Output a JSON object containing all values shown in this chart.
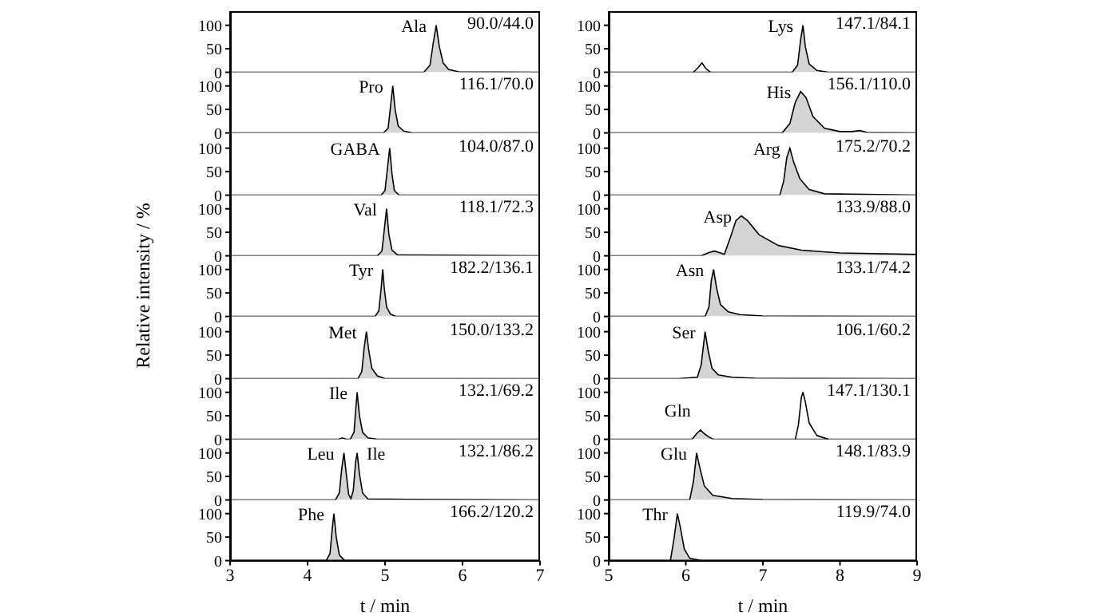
{
  "chart_data": [
    {
      "type": "area",
      "series": [
        {
          "color": "#d4d4d4",
          "x": [
            3,
            5.5,
            5.58,
            5.62,
            5.66,
            5.7,
            5.75,
            5.82,
            5.95,
            7
          ],
          "values": [
            0,
            0,
            15,
            60,
            100,
            55,
            20,
            6,
            1,
            0
          ]
        }
      ],
      "xlim": [
        3,
        7
      ],
      "ylim": [
        0,
        130
      ],
      "yticks": [
        0,
        50,
        100
      ],
      "tick_labels": "y",
      "annotations": [
        {
          "text": "Ala",
          "x": 5.66,
          "y": 100
        },
        "90.0/44.0"
      ]
    },
    {
      "type": "area",
      "series": [
        {
          "color": "#d4d4d4",
          "x": [
            3,
            4.98,
            5.04,
            5.07,
            5.1,
            5.13,
            5.17,
            5.24,
            5.35,
            7
          ],
          "values": [
            0,
            0,
            10,
            55,
            100,
            50,
            15,
            4,
            0,
            0
          ]
        }
      ],
      "xlim": [
        3,
        7
      ],
      "ylim": [
        0,
        130
      ],
      "yticks": [
        0,
        50,
        100
      ],
      "tick_labels": "y",
      "annotations": [
        {
          "text": "Pro",
          "x": 5.1,
          "y": 100
        },
        "116.1/70.0"
      ]
    },
    {
      "type": "area",
      "series": [
        {
          "color": "#d4d4d4",
          "x": [
            3,
            4.95,
            5,
            5.03,
            5.06,
            5.09,
            5.12,
            5.18,
            7
          ],
          "values": [
            0,
            0,
            10,
            55,
            100,
            45,
            10,
            0,
            0
          ]
        }
      ],
      "xlim": [
        3,
        7
      ],
      "ylim": [
        0,
        130
      ],
      "yticks": [
        0,
        50,
        100
      ],
      "tick_labels": "y",
      "annotations": [
        {
          "text": "GABA",
          "x": 5.06,
          "y": 100
        },
        "104.0/87.0"
      ]
    },
    {
      "type": "area",
      "series": [
        {
          "color": "#d4d4d4",
          "x": [
            3,
            4.9,
            4.96,
            4.99,
            5.02,
            5.05,
            5.09,
            5.16,
            7
          ],
          "values": [
            0,
            0,
            10,
            55,
            100,
            45,
            12,
            2,
            0
          ]
        }
      ],
      "xlim": [
        3,
        7
      ],
      "ylim": [
        0,
        130
      ],
      "yticks": [
        0,
        50,
        100
      ],
      "tick_labels": "y",
      "annotations": [
        {
          "text": "Val",
          "x": 5.02,
          "y": 100
        },
        "118.1/72.3"
      ]
    },
    {
      "type": "area",
      "series": [
        {
          "color": "#d4d4d4",
          "x": [
            3,
            4.87,
            4.92,
            4.95,
            4.97,
            4.99,
            5.02,
            5.07,
            5.14,
            7
          ],
          "values": [
            0,
            0,
            12,
            60,
            100,
            60,
            20,
            5,
            0,
            0
          ]
        }
      ],
      "xlim": [
        3,
        7
      ],
      "ylim": [
        0,
        130
      ],
      "yticks": [
        0,
        50,
        100
      ],
      "tick_labels": "y",
      "ylabel": "Relative intensity / %",
      "annotations": [
        {
          "text": "Tyr",
          "x": 4.97,
          "y": 100
        },
        "182.2/136.1"
      ]
    },
    {
      "type": "area",
      "series": [
        {
          "color": "#d4d4d4",
          "x": [
            3,
            4.65,
            4.7,
            4.73,
            4.76,
            4.79,
            4.83,
            4.9,
            5,
            7
          ],
          "values": [
            0,
            0,
            15,
            65,
            100,
            60,
            22,
            6,
            0,
            0
          ]
        }
      ],
      "xlim": [
        3,
        7
      ],
      "ylim": [
        0,
        130
      ],
      "yticks": [
        0,
        50,
        100
      ],
      "tick_labels": "y",
      "annotations": [
        {
          "text": "Met",
          "x": 4.76,
          "y": 100
        },
        "150.0/133.2"
      ]
    },
    {
      "type": "area",
      "series": [
        {
          "color": "#d4d4d4",
          "x": [
            3,
            4.4,
            4.45,
            4.5,
            4.55,
            4.6,
            4.62,
            4.64,
            4.67,
            4.71,
            4.78,
            4.9,
            7
          ],
          "values": [
            0,
            0,
            3,
            0,
            0,
            15,
            60,
            100,
            50,
            15,
            3,
            0,
            0
          ]
        }
      ],
      "xlim": [
        3,
        7
      ],
      "ylim": [
        0,
        130
      ],
      "yticks": [
        0,
        50,
        100
      ],
      "tick_labels": "y",
      "annotations": [
        {
          "text": "Ile",
          "x": 4.64,
          "y": 100
        },
        "132.1/69.2"
      ]
    },
    {
      "type": "area",
      "series": [
        {
          "color": "#d4d4d4",
          "x": [
            3,
            4.36,
            4.41,
            4.44,
            4.47,
            4.5,
            4.53,
            4.56,
            4.59,
            4.62,
            4.64,
            4.67,
            4.71,
            4.78,
            7
          ],
          "values": [
            0,
            0,
            15,
            65,
            100,
            55,
            12,
            3,
            20,
            80,
            100,
            55,
            15,
            2,
            0
          ]
        }
      ],
      "xlim": [
        3,
        7
      ],
      "ylim": [
        0,
        130
      ],
      "yticks": [
        0,
        50,
        100
      ],
      "tick_labels": "y",
      "annotations": [
        {
          "text": "Leu",
          "x": 4.47,
          "y": 100
        },
        {
          "text": "Ile",
          "x": 4.64,
          "y": 100
        },
        "132.1/86.2"
      ]
    },
    {
      "type": "area",
      "series": [
        {
          "color": "#d4d4d4",
          "x": [
            3,
            4.24,
            4.29,
            4.32,
            4.34,
            4.37,
            4.41,
            4.48,
            7
          ],
          "values": [
            0,
            0,
            15,
            70,
            100,
            50,
            12,
            0,
            0
          ]
        }
      ],
      "xlim": [
        3,
        7
      ],
      "ylim": [
        0,
        130
      ],
      "yticks": [
        0,
        50,
        100
      ],
      "xticks": [
        3,
        4,
        5,
        6,
        7
      ],
      "xlabel": "t / min",
      "annotations": [
        {
          "text": "Phe",
          "x": 4.34,
          "y": 100
        },
        "166.2/120.2"
      ]
    },
    {
      "type": "area",
      "series": [
        {
          "color": "#d4d4d4",
          "x": [
            5,
            7.38,
            7.45,
            7.49,
            7.52,
            7.55,
            7.6,
            7.7,
            7.85,
            9
          ],
          "values": [
            0,
            0,
            15,
            70,
            100,
            55,
            18,
            4,
            0,
            0
          ]
        },
        {
          "type": "line",
          "color": "#000000",
          "x": [
            6.1,
            6.16,
            6.21,
            6.26,
            6.32
          ],
          "values": [
            0,
            10,
            20,
            8,
            0
          ]
        }
      ],
      "xlim": [
        5,
        9
      ],
      "ylim": [
        0,
        130
      ],
      "yticks": [
        0,
        50,
        100
      ],
      "tick_labels": "y",
      "annotations": [
        {
          "text": "Lys",
          "x": 7.52,
          "y": 100
        },
        "147.1/84.1"
      ]
    },
    {
      "type": "area",
      "series": [
        {
          "color": "#d4d4d4",
          "x": [
            5,
            7.25,
            7.35,
            7.42,
            7.49,
            7.56,
            7.65,
            7.8,
            8,
            8.15,
            8.26,
            8.35,
            9
          ],
          "values": [
            0,
            0,
            20,
            65,
            88,
            75,
            35,
            10,
            3,
            3,
            5,
            1,
            0
          ]
        }
      ],
      "xlim": [
        5,
        9
      ],
      "ylim": [
        0,
        130
      ],
      "yticks": [
        0,
        50,
        100
      ],
      "tick_labels": "y",
      "annotations": [
        {
          "text": "His",
          "x": 7.49,
          "y": 88
        },
        "156.1/110.0"
      ]
    },
    {
      "type": "area",
      "series": [
        {
          "color": "#d4d4d4",
          "x": [
            5,
            7.22,
            7.27,
            7.31,
            7.35,
            7.4,
            7.48,
            7.6,
            7.8,
            9
          ],
          "values": [
            0,
            0,
            30,
            80,
            100,
            70,
            35,
            12,
            3,
            0
          ]
        }
      ],
      "xlim": [
        5,
        9
      ],
      "ylim": [
        0,
        130
      ],
      "yticks": [
        0,
        50,
        100
      ],
      "tick_labels": "y",
      "annotations": [
        {
          "text": "Arg",
          "x": 7.35,
          "y": 100
        },
        "175.2/70.2"
      ]
    },
    {
      "type": "area",
      "series": [
        {
          "color": "#d4d4d4",
          "x": [
            5,
            6.2,
            6.3,
            6.37,
            6.45,
            6.5,
            6.58,
            6.65,
            6.72,
            6.8,
            6.95,
            7.2,
            7.5,
            8,
            9
          ],
          "values": [
            0,
            0,
            7,
            10,
            6,
            3,
            40,
            75,
            85,
            75,
            45,
            22,
            12,
            6,
            3
          ]
        }
      ],
      "xlim": [
        5,
        9
      ],
      "ylim": [
        0,
        130
      ],
      "yticks": [
        0,
        50,
        100
      ],
      "tick_labels": "y",
      "annotations": [
        {
          "text": "Asp",
          "x": 6.72,
          "y": 85
        },
        "133.9/88.0"
      ]
    },
    {
      "type": "area",
      "series": [
        {
          "color": "#d4d4d4",
          "x": [
            5,
            6.25,
            6.3,
            6.33,
            6.36,
            6.4,
            6.45,
            6.55,
            6.7,
            7,
            9
          ],
          "values": [
            0,
            0,
            20,
            75,
            100,
            60,
            25,
            10,
            4,
            1,
            0
          ]
        }
      ],
      "xlim": [
        5,
        9
      ],
      "ylim": [
        0,
        130
      ],
      "yticks": [
        0,
        50,
        100
      ],
      "tick_labels": "y",
      "annotations": [
        {
          "text": "Asn",
          "x": 6.36,
          "y": 100
        },
        "133.1/74.2"
      ]
    },
    {
      "type": "area",
      "series": [
        {
          "color": "#d4d4d4",
          "x": [
            5,
            5.9,
            6.15,
            6.2,
            6.25,
            6.29,
            6.34,
            6.42,
            6.6,
            6.9,
            9
          ],
          "values": [
            0,
            0,
            3,
            30,
            100,
            60,
            22,
            8,
            3,
            1,
            0
          ]
        }
      ],
      "xlim": [
        5,
        9
      ],
      "ylim": [
        0,
        130
      ],
      "yticks": [
        0,
        50,
        100
      ],
      "tick_labels": "y",
      "annotations": [
        {
          "text": "Ser",
          "x": 6.25,
          "y": 100
        },
        "106.1/60.2"
      ]
    },
    {
      "type": "area",
      "series": [
        {
          "color": "#d4d4d4",
          "x": [
            5,
            6.08,
            6.14,
            6.19,
            6.24,
            6.3,
            6.36,
            9
          ],
          "values": [
            0,
            0,
            12,
            20,
            12,
            5,
            0,
            0
          ]
        },
        {
          "type": "line",
          "color": "#000000",
          "x": [
            7.42,
            7.46,
            7.5,
            7.52,
            7.55,
            7.6,
            7.7,
            7.85
          ],
          "values": [
            0,
            30,
            90,
            100,
            80,
            35,
            8,
            0
          ]
        }
      ],
      "xlim": [
        5,
        9
      ],
      "ylim": [
        0,
        130
      ],
      "yticks": [
        0,
        50,
        100
      ],
      "tick_labels": "y",
      "annotations": [
        {
          "text": "Gln",
          "x": 6.19,
          "y": 20
        },
        "147.1/130.1"
      ]
    },
    {
      "type": "area",
      "series": [
        {
          "color": "#d4d4d4",
          "x": [
            5,
            6.05,
            6.1,
            6.14,
            6.18,
            6.24,
            6.35,
            6.6,
            7,
            9
          ],
          "values": [
            0,
            0,
            40,
            100,
            70,
            30,
            10,
            3,
            1,
            0
          ]
        }
      ],
      "xlim": [
        5,
        9
      ],
      "ylim": [
        0,
        130
      ],
      "yticks": [
        0,
        50,
        100
      ],
      "tick_labels": "y",
      "annotations": [
        {
          "text": "Glu",
          "x": 6.14,
          "y": 100
        },
        "148.1/83.9"
      ]
    },
    {
      "type": "area",
      "series": [
        {
          "color": "#d4d4d4",
          "x": [
            5,
            5.8,
            5.85,
            5.89,
            5.93,
            5.98,
            6.05,
            6.2,
            9
          ],
          "values": [
            0,
            0,
            50,
            100,
            70,
            25,
            5,
            0,
            0
          ]
        }
      ],
      "xlim": [
        5,
        9
      ],
      "ylim": [
        0,
        130
      ],
      "yticks": [
        0,
        50,
        100
      ],
      "xticks": [
        5,
        6,
        7,
        8,
        9
      ],
      "xlabel": "t / min",
      "annotations": [
        {
          "text": "Thr",
          "x": 5.89,
          "y": 100
        },
        "119.9/74.0"
      ]
    }
  ]
}
